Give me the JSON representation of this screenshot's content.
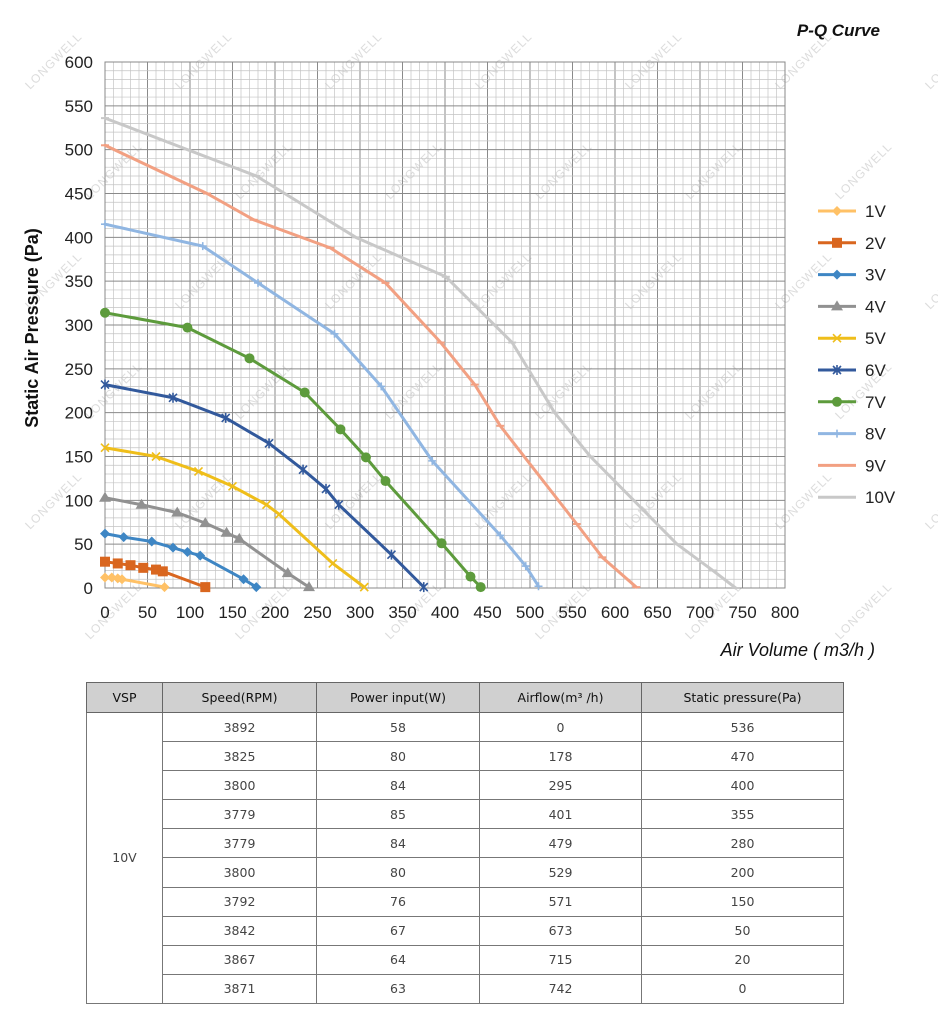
{
  "chart_data": {
    "type": "line",
    "title": "P-Q Curve",
    "xlabel": "Air Volume ( m3/h )",
    "ylabel": "Static Air Pressure  (Pa)",
    "xlim": [
      0,
      800
    ],
    "ylim": [
      0,
      600
    ],
    "xticks": [
      "0",
      "50",
      "100",
      "150",
      "200",
      "250",
      "300",
      "350",
      "400",
      "450",
      "500",
      "550",
      "600",
      "650",
      "700",
      "750",
      "800"
    ],
    "yticks": [
      "0",
      "50",
      "100",
      "150",
      "200",
      "250",
      "300",
      "350",
      "400",
      "450",
      "500",
      "550",
      "600"
    ],
    "grid": true,
    "legend_position": "right",
    "series": [
      {
        "name": "1V",
        "color": "#ffc166",
        "marker": "diamond",
        "x": [
          0,
          8,
          15,
          20,
          70
        ],
        "y": [
          12,
          12,
          11,
          10,
          1
        ]
      },
      {
        "name": "2V",
        "color": "#d9661f",
        "marker": "square",
        "x": [
          0,
          15,
          30,
          45,
          60,
          68,
          118
        ],
        "y": [
          30,
          28,
          26,
          23,
          21,
          19,
          1
        ]
      },
      {
        "name": "3V",
        "color": "#3e86c4",
        "marker": "diamond",
        "x": [
          0,
          22,
          55,
          80,
          97,
          112,
          163,
          178
        ],
        "y": [
          62,
          58,
          53,
          46,
          41,
          37,
          10,
          1
        ]
      },
      {
        "name": "4V",
        "color": "#919191",
        "marker": "triangle",
        "x": [
          0,
          43,
          85,
          118,
          143,
          158,
          215,
          240
        ],
        "y": [
          103,
          95,
          86,
          74,
          63,
          56,
          17,
          1
        ]
      },
      {
        "name": "5V",
        "color": "#efbe1a",
        "marker": "x",
        "x": [
          0,
          60,
          110,
          150,
          190,
          205,
          268,
          305
        ],
        "y": [
          160,
          150,
          133,
          116,
          95,
          84,
          28,
          1
        ]
      },
      {
        "name": "6V",
        "color": "#32599c",
        "marker": "star",
        "x": [
          0,
          80,
          142,
          193,
          233,
          260,
          275,
          337,
          375
        ],
        "y": [
          232,
          217,
          194,
          165,
          135,
          113,
          95,
          38,
          1
        ]
      },
      {
        "name": "7V",
        "color": "#5d9b3c",
        "marker": "circle",
        "x": [
          0,
          97,
          170,
          235,
          277,
          307,
          330,
          396,
          430,
          442
        ],
        "y": [
          314,
          297,
          262,
          223,
          181,
          149,
          122,
          51,
          13,
          1
        ]
      },
      {
        "name": "8V",
        "color": "#90b6e2",
        "marker": "plus",
        "x": [
          0,
          115,
          180,
          270,
          325,
          385,
          465,
          495,
          510
        ],
        "y": [
          415,
          390,
          348,
          290,
          230,
          145,
          60,
          25,
          2
        ]
      },
      {
        "name": "9V",
        "color": "#f2a082",
        "marker": "dash",
        "x": [
          0,
          120,
          175,
          265,
          330,
          395,
          435,
          465,
          555,
          585,
          625
        ],
        "y": [
          505,
          450,
          420,
          388,
          348,
          280,
          232,
          185,
          73,
          35,
          1
        ]
      },
      {
        "name": "10V",
        "color": "#c8c8c8",
        "marker": "dash",
        "x": [
          0,
          178,
          295,
          401,
          479,
          529,
          571,
          673,
          715,
          742
        ],
        "y": [
          536,
          470,
          400,
          355,
          280,
          200,
          150,
          50,
          20,
          0
        ]
      }
    ]
  },
  "watermark": "LONGWELL",
  "table": {
    "headers": [
      "VSP",
      "Speed(RPM)",
      "Power input(W)",
      "Airflow(m³ /h)",
      "Static pressure(Pa)"
    ],
    "vsp": "10V",
    "rows": [
      [
        "3892",
        "58",
        "0",
        "536"
      ],
      [
        "3825",
        "80",
        "178",
        "470"
      ],
      [
        "3800",
        "84",
        "295",
        "400"
      ],
      [
        "3779",
        "85",
        "401",
        "355"
      ],
      [
        "3779",
        "84",
        "479",
        "280"
      ],
      [
        "3800",
        "80",
        "529",
        "200"
      ],
      [
        "3792",
        "76",
        "571",
        "150"
      ],
      [
        "3842",
        "67",
        "673",
        "50"
      ],
      [
        "3867",
        "64",
        "715",
        "20"
      ],
      [
        "3871",
        "63",
        "742",
        "0"
      ]
    ]
  }
}
